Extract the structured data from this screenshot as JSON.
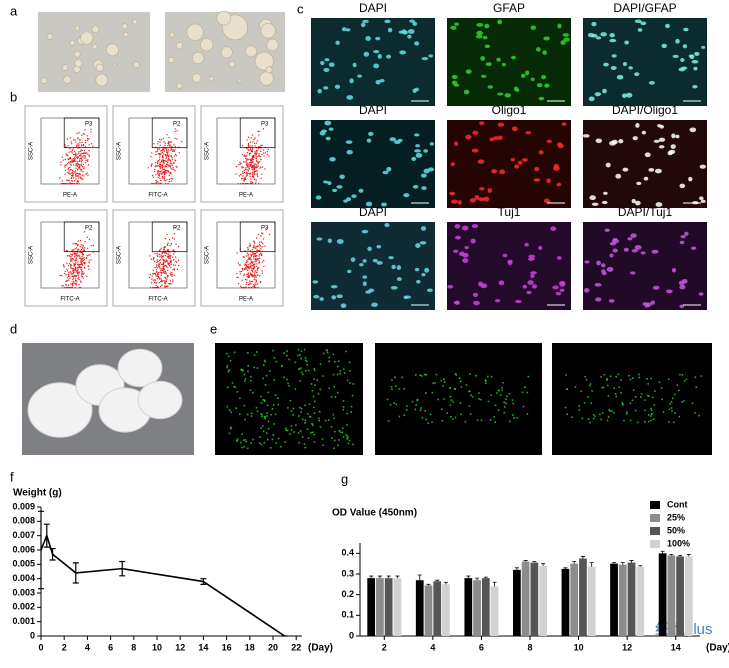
{
  "panel_labels": [
    "a",
    "b",
    "c",
    "d",
    "e",
    "f",
    "g"
  ],
  "flow_plots": [
    {
      "gate": "P3",
      "x_label": "PE-A",
      "y_label": "SSC-A"
    },
    {
      "gate": "P2",
      "x_label": "FITC-A",
      "y_label": "SSC-A"
    },
    {
      "gate": "P3",
      "x_label": "PE-A",
      "y_label": "SSC-A"
    },
    {
      "gate": "P2",
      "x_label": "FITC-A",
      "y_label": "SSC-A"
    },
    {
      "gate": "P2",
      "x_label": "FITC-A",
      "y_label": "SSC-A"
    },
    {
      "gate": "P3",
      "x_label": "PE-A",
      "y_label": "SSC-A"
    }
  ],
  "stains": [
    [
      "DAPI",
      "GFAP",
      "DAPI/GFAP"
    ],
    [
      "DAPI",
      "Oligo1",
      "DAPI/Oligo1"
    ],
    [
      "DAPI",
      "Tuj1",
      "DAPI/Tuj1"
    ]
  ],
  "watermark": "细胞plus",
  "chart_data": [
    {
      "type": "line",
      "y_label": "Weight (g)",
      "x_label": "(Day)",
      "color": "#000000",
      "x": [
        0,
        0.5,
        1,
        3,
        7,
        14,
        21
      ],
      "values": [
        0.006,
        0.007,
        0.0057,
        0.0044,
        0.0047,
        0.0038,
        0
      ],
      "errors": [
        0.0027,
        0.0008,
        0.0004,
        0.0007,
        0.0005,
        0.0002,
        0
      ],
      "xlim": [
        0,
        22.5
      ],
      "xticks": [
        0,
        2,
        4,
        6,
        8,
        10,
        12,
        14,
        16,
        18,
        20,
        22
      ],
      "ylim": [
        0,
        0.009
      ],
      "yticks": [
        0,
        0.001,
        0.002,
        0.003,
        0.004,
        0.005,
        0.006,
        0.007,
        0.008,
        0.009
      ]
    },
    {
      "type": "bar",
      "y_label": "OD Value (450nm)",
      "x_label": "(Day)",
      "legend": "top-right",
      "categories": [
        "2",
        "4",
        "6",
        "8",
        "10",
        "12",
        "14"
      ],
      "series": [
        {
          "name": "Cont",
          "color": "#000000",
          "values": [
            0.28,
            0.27,
            0.28,
            0.32,
            0.325,
            0.35,
            0.4
          ],
          "errors": [
            0.01,
            0.025,
            0.01,
            0.01,
            0.005,
            0.005,
            0.01
          ]
        },
        {
          "name": "25%",
          "color": "#8c8c8c",
          "values": [
            0.28,
            0.245,
            0.27,
            0.36,
            0.35,
            0.345,
            0.39
          ],
          "errors": [
            0.01,
            0.005,
            0.01,
            0.005,
            0.01,
            0.01,
            0.005
          ]
        },
        {
          "name": "50%",
          "color": "#555555",
          "values": [
            0.28,
            0.265,
            0.28,
            0.355,
            0.375,
            0.355,
            0.385
          ],
          "errors": [
            0.01,
            0.005,
            0.005,
            0.005,
            0.01,
            0.01,
            0.005
          ]
        },
        {
          "name": "100%",
          "color": "#d2d2d2",
          "values": [
            0.28,
            0.25,
            0.24,
            0.34,
            0.335,
            0.335,
            0.385
          ],
          "errors": [
            0.01,
            0.01,
            0.02,
            0.01,
            0.02,
            0.005,
            0.01
          ]
        }
      ],
      "ylim": [
        0,
        0.45
      ],
      "yticks": [
        0,
        0.1,
        0.2,
        0.3,
        0.4
      ]
    }
  ]
}
